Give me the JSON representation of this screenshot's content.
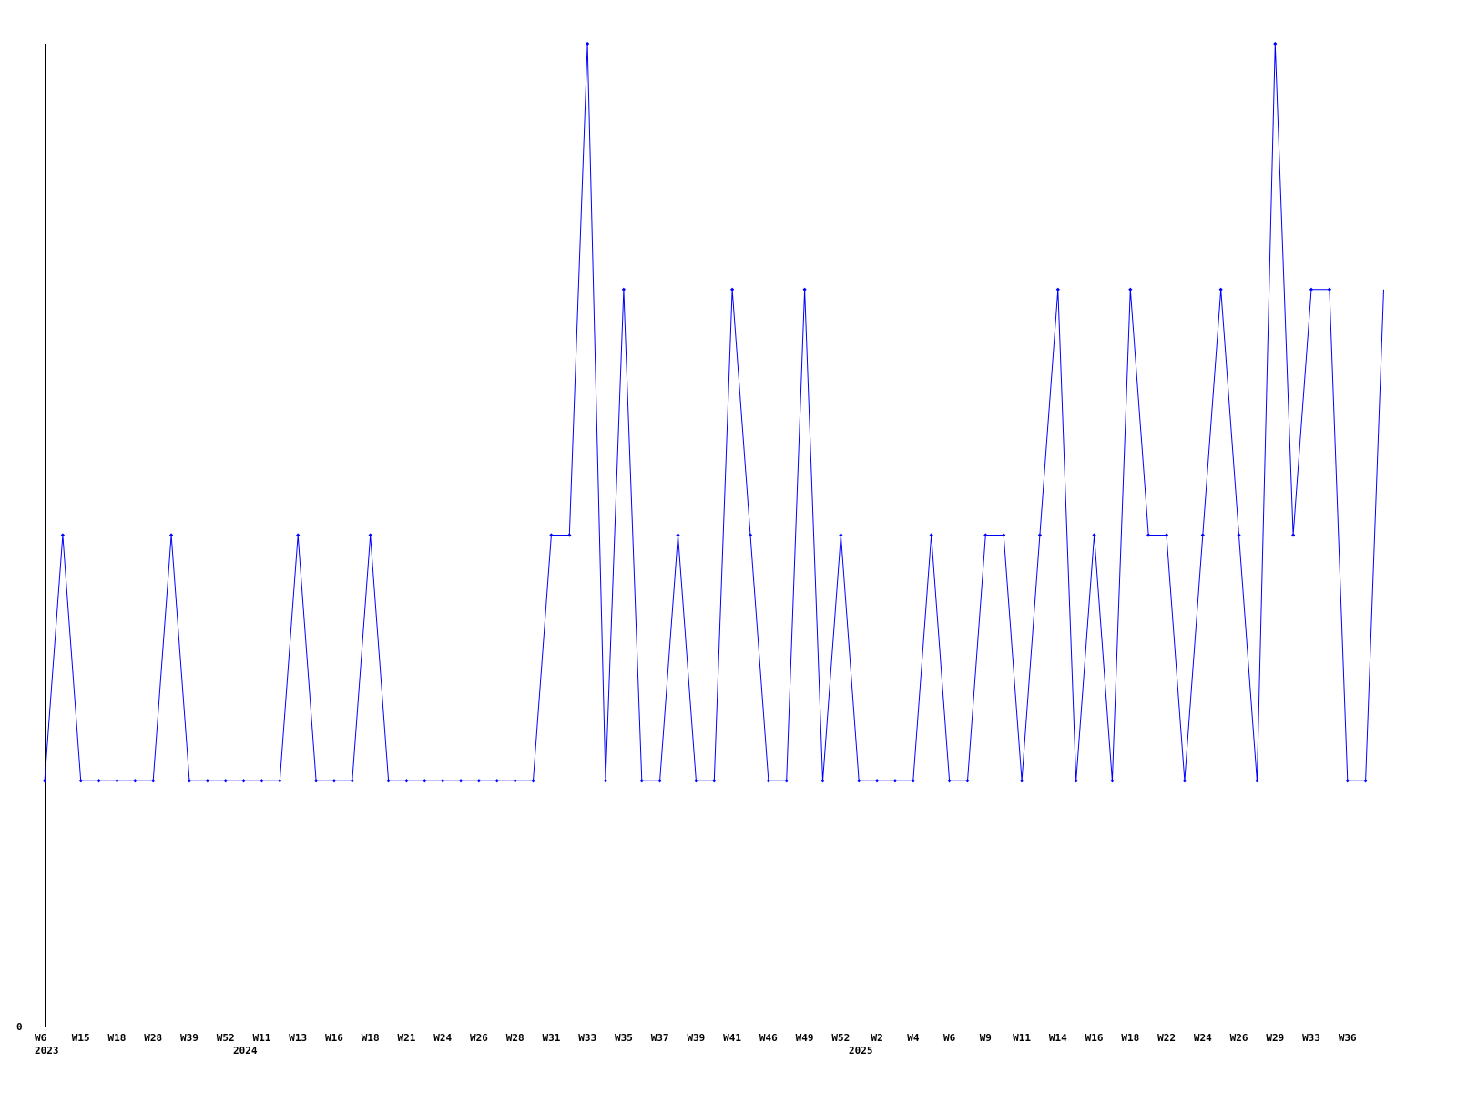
{
  "chart_data": {
    "type": "line",
    "title": "",
    "xlabel": "",
    "ylabel": "",
    "y_tick_labels": [
      "0"
    ],
    "ylim": [
      0,
      4
    ],
    "grid": false,
    "line_color": "#0000ff",
    "axis_color": "#000000",
    "x_tick_labels": [
      "W6",
      "W15",
      "W18",
      "W28",
      "W39",
      "W52",
      "W11",
      "W13",
      "W16",
      "W18",
      "W21",
      "W24",
      "W26",
      "W28",
      "W31",
      "W33",
      "W35",
      "W37",
      "W39",
      "W41",
      "W46",
      "W49",
      "W52",
      "W2",
      "W4",
      "W6",
      "W9",
      "W11",
      "W14",
      "W16",
      "W18",
      "W22",
      "W24",
      "W26",
      "W29",
      "W33",
      "W36"
    ],
    "year_labels": [
      "2023",
      "2024",
      "2025"
    ],
    "values": [
      1,
      2,
      1,
      1,
      1,
      1,
      1,
      2,
      1,
      1,
      1,
      1,
      1,
      1,
      2,
      1,
      1,
      1,
      2,
      1,
      1,
      1,
      1,
      1,
      1,
      1,
      1,
      1,
      2,
      2,
      4,
      1,
      3,
      1,
      1,
      2,
      1,
      1,
      3,
      2,
      1,
      1,
      3,
      1,
      2,
      1,
      1,
      1,
      1,
      2,
      1,
      1,
      2,
      2,
      1,
      2,
      3,
      1,
      2,
      1,
      3,
      2,
      2,
      1,
      2,
      3,
      2,
      1,
      4,
      2,
      3,
      3,
      1,
      1,
      3
    ]
  }
}
